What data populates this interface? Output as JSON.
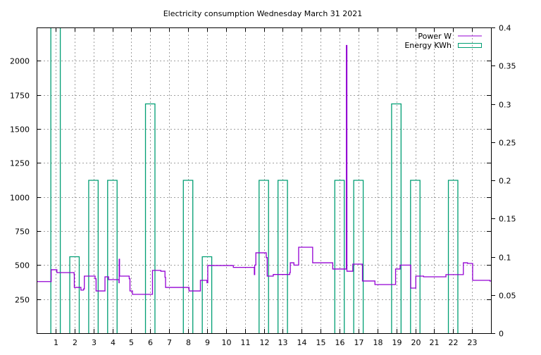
{
  "chart_data": {
    "type": "line",
    "title": "Electricity consumption Wednesday March 31 2021",
    "xlabel": "",
    "ylabel": "",
    "y2label": "",
    "xlim": [
      0,
      24
    ],
    "ylim": [
      0,
      2245
    ],
    "y2lim": [
      0,
      0.4
    ],
    "grid": true,
    "legend_position": "top-right",
    "x_ticks": [
      1,
      2,
      3,
      4,
      5,
      6,
      7,
      8,
      9,
      10,
      11,
      12,
      13,
      14,
      15,
      16,
      17,
      18,
      19,
      20,
      21,
      22,
      23
    ],
    "y_ticks": [
      250,
      500,
      750,
      1000,
      1250,
      1500,
      1750,
      2000
    ],
    "y2_ticks": [
      0,
      0.05,
      0.1,
      0.15,
      0.2,
      0.25,
      0.3,
      0.35,
      0.4
    ],
    "series": [
      {
        "name": "Power W",
        "style": "steps",
        "axis": "y",
        "color": "#9400d3",
        "points": [
          [
            0,
            379
          ],
          [
            0.77,
            466
          ],
          [
            1.07,
            445
          ],
          [
            1.98,
            430
          ],
          [
            1.99,
            336
          ],
          [
            2.34,
            316
          ],
          [
            2.48,
            325
          ],
          [
            2.52,
            419
          ],
          [
            3.09,
            400
          ],
          [
            3.14,
            310
          ],
          [
            3.61,
            414
          ],
          [
            3.8,
            393
          ],
          [
            4.35,
            370
          ],
          [
            4.36,
            543
          ],
          [
            4.38,
            419
          ],
          [
            4.89,
            400
          ],
          [
            4.93,
            310
          ],
          [
            5.06,
            285
          ],
          [
            6.12,
            461
          ],
          [
            6.56,
            455
          ],
          [
            6.78,
            410
          ],
          [
            6.81,
            336
          ],
          [
            8.05,
            310
          ],
          [
            8.65,
            388
          ],
          [
            9.0,
            370
          ],
          [
            9.04,
            497
          ],
          [
            10.39,
            483
          ],
          [
            11.5,
            430
          ],
          [
            11.52,
            500
          ],
          [
            11.58,
            590
          ],
          [
            12.13,
            555
          ],
          [
            12.18,
            419
          ],
          [
            12.5,
            431
          ],
          [
            13.37,
            445
          ],
          [
            13.4,
            517
          ],
          [
            13.59,
            500
          ],
          [
            13.84,
            631
          ],
          [
            14.58,
            517
          ],
          [
            15.64,
            471
          ],
          [
            16.36,
            2113
          ],
          [
            16.39,
            455
          ],
          [
            16.7,
            507
          ],
          [
            17.21,
            383
          ],
          [
            17.87,
            357
          ],
          [
            18.96,
            471
          ],
          [
            19.2,
            500
          ],
          [
            19.76,
            331
          ],
          [
            20.03,
            419
          ],
          [
            20.44,
            414
          ],
          [
            21.62,
            430
          ],
          [
            22.54,
            517
          ],
          [
            22.76,
            512
          ],
          [
            23.03,
            388
          ],
          [
            23.94,
            383
          ],
          [
            24,
            383
          ]
        ]
      },
      {
        "name": "Energy KWh",
        "style": "boxes",
        "axis": "y2",
        "color": "#009e73",
        "box_width_hours": 0.5,
        "bars": [
          [
            1,
            0.5
          ],
          [
            2,
            0.1
          ],
          [
            3,
            0.2
          ],
          [
            4,
            0.2
          ],
          [
            6,
            0.3
          ],
          [
            8,
            0.2
          ],
          [
            9,
            0.1
          ],
          [
            12,
            0.2
          ],
          [
            13,
            0.2
          ],
          [
            16,
            0.2
          ],
          [
            17,
            0.2
          ],
          [
            19,
            0.3
          ],
          [
            20,
            0.2
          ],
          [
            22,
            0.2
          ]
        ]
      }
    ]
  }
}
